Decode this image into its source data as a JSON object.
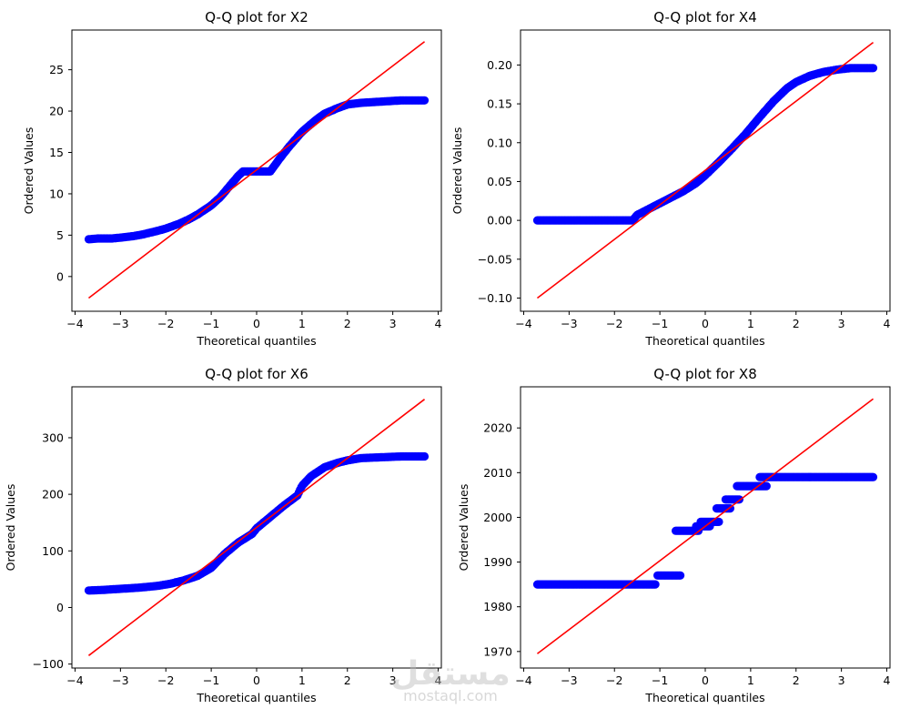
{
  "watermark": {
    "arabic": "مستقل",
    "latin": "mostaql.com"
  },
  "chart_data": [
    {
      "type": "scatter",
      "title": "Q-Q plot for X2",
      "xlabel": "Theoretical quantiles",
      "ylabel": "Ordered Values",
      "xlim": [
        -4.07,
        4.07
      ],
      "ylim": [
        -4.2,
        29.8
      ],
      "xticks": [
        -4,
        -3,
        -2,
        -1,
        0,
        1,
        2,
        3,
        4
      ],
      "yticks": [
        0,
        5,
        10,
        15,
        20,
        25
      ],
      "xtick_labels": [
        "−4",
        "−3",
        "−2",
        "−1",
        "0",
        "1",
        "2",
        "3",
        "4"
      ],
      "ytick_labels": [
        "0",
        "5",
        "10",
        "15",
        "20",
        "25"
      ],
      "points_color": "#0000ff",
      "fit_color": "#ff0000",
      "fit_line": {
        "x": [
          -3.7,
          3.7
        ],
        "y": [
          -2.6,
          28.4
        ]
      },
      "quantile_curve": {
        "x": [
          -3.7,
          -3.5,
          -3.2,
          -3.0,
          -2.7,
          -2.5,
          -2.2,
          -2.0,
          -1.7,
          -1.5,
          -1.3,
          -1.0,
          -0.8,
          -0.6,
          -0.4,
          -0.3,
          0.3,
          0.5,
          0.7,
          1.0,
          1.3,
          1.5,
          1.8,
          2.0,
          2.3,
          2.6,
          2.9,
          3.2,
          3.5,
          3.7
        ],
        "y": [
          4.5,
          4.6,
          4.6,
          4.7,
          4.9,
          5.1,
          5.5,
          5.8,
          6.4,
          6.9,
          7.5,
          8.6,
          9.6,
          10.9,
          12.2,
          12.7,
          12.7,
          14.2,
          15.6,
          17.5,
          18.9,
          19.7,
          20.4,
          20.8,
          21.0,
          21.1,
          21.2,
          21.3,
          21.3,
          21.3
        ]
      }
    },
    {
      "type": "scatter",
      "title": "Q-Q plot for X4",
      "xlabel": "Theoretical quantiles",
      "ylabel": "Ordered Values",
      "xlim": [
        -4.07,
        4.07
      ],
      "ylim": [
        -0.117,
        0.245
      ],
      "xticks": [
        -4,
        -3,
        -2,
        -1,
        0,
        1,
        2,
        3,
        4
      ],
      "yticks": [
        -0.1,
        -0.05,
        0.0,
        0.05,
        0.1,
        0.15,
        0.2
      ],
      "xtick_labels": [
        "−4",
        "−3",
        "−2",
        "−1",
        "0",
        "1",
        "2",
        "3",
        "4"
      ],
      "ytick_labels": [
        "−0.10",
        "−0.05",
        "0.00",
        "0.05",
        "0.10",
        "0.15",
        "0.20"
      ],
      "points_color": "#0000ff",
      "fit_color": "#ff0000",
      "fit_line": {
        "x": [
          -3.7,
          3.7
        ],
        "y": [
          -0.1,
          0.229
        ]
      },
      "quantile_curve": {
        "x": [
          -3.7,
          -3.4,
          -3.0,
          -2.6,
          -2.2,
          -1.9,
          -1.6,
          -1.5,
          -1.3,
          -1.0,
          -0.8,
          -0.5,
          -0.2,
          0.0,
          0.3,
          0.6,
          0.9,
          1.2,
          1.5,
          1.8,
          2.0,
          2.3,
          2.6,
          2.9,
          3.2,
          3.5,
          3.7
        ],
        "y": [
          0.0,
          0.0,
          0.0,
          0.0,
          0.0,
          0.0,
          0.0,
          0.007,
          0.013,
          0.022,
          0.028,
          0.037,
          0.048,
          0.058,
          0.075,
          0.093,
          0.112,
          0.133,
          0.153,
          0.17,
          0.178,
          0.186,
          0.191,
          0.194,
          0.196,
          0.196,
          0.196
        ]
      }
    },
    {
      "type": "scatter",
      "title": "Q-Q plot for X6",
      "xlabel": "Theoretical quantiles",
      "ylabel": "Ordered Values",
      "xlim": [
        -4.07,
        4.07
      ],
      "ylim": [
        -107,
        390
      ],
      "xticks": [
        -4,
        -3,
        -2,
        -1,
        0,
        1,
        2,
        3,
        4
      ],
      "yticks": [
        -100,
        0,
        100,
        200,
        300
      ],
      "xtick_labels": [
        "−4",
        "−3",
        "−2",
        "−1",
        "0",
        "1",
        "2",
        "3",
        "4"
      ],
      "ytick_labels": [
        "−100",
        "0",
        "100",
        "200",
        "300"
      ],
      "points_color": "#0000ff",
      "fit_color": "#ff0000",
      "fit_line": {
        "x": [
          -3.7,
          3.7
        ],
        "y": [
          -85,
          368
        ]
      },
      "quantile_curve": {
        "x": [
          -3.7,
          -3.4,
          -3.0,
          -2.6,
          -2.2,
          -1.9,
          -1.6,
          -1.3,
          -1.0,
          -0.7,
          -0.4,
          -0.1,
          0.0,
          0.3,
          0.6,
          0.9,
          1.0,
          1.2,
          1.5,
          1.8,
          2.0,
          2.3,
          2.6,
          2.9,
          3.2,
          3.5,
          3.7
        ],
        "y": [
          30,
          31,
          33,
          35,
          38,
          42,
          48,
          56,
          70,
          95,
          115,
          130,
          140,
          160,
          180,
          198,
          215,
          232,
          248,
          256,
          260,
          264,
          265,
          266,
          267,
          267,
          267
        ]
      }
    },
    {
      "type": "scatter",
      "title": "Q-Q plot for X8",
      "xlabel": "Theoretical quantiles",
      "ylabel": "Ordered Values",
      "xlim": [
        -4.07,
        4.07
      ],
      "ylim": [
        1966.3,
        2029.2
      ],
      "xticks": [
        -4,
        -3,
        -2,
        -1,
        0,
        1,
        2,
        3,
        4
      ],
      "yticks": [
        1970,
        1980,
        1990,
        2000,
        2010,
        2020
      ],
      "xtick_labels": [
        "−4",
        "−3",
        "−2",
        "−1",
        "0",
        "1",
        "2",
        "3",
        "4"
      ],
      "ytick_labels": [
        "1970",
        "1980",
        "1990",
        "2000",
        "2010",
        "2020"
      ],
      "points_color": "#0000ff",
      "fit_color": "#ff0000",
      "fit_line": {
        "x": [
          -3.7,
          3.7
        ],
        "y": [
          1969.5,
          2026.5
        ]
      },
      "step_segments": [
        {
          "x0": -3.7,
          "x1": -1.1,
          "y": 1985
        },
        {
          "x0": -1.05,
          "x1": -0.55,
          "y": 1987
        },
        {
          "x0": -0.65,
          "x1": -0.15,
          "y": 1997
        },
        {
          "x0": -0.2,
          "x1": 0.1,
          "y": 1998
        },
        {
          "x0": -0.1,
          "x1": 0.3,
          "y": 1999
        },
        {
          "x0": 0.25,
          "x1": 0.55,
          "y": 2002
        },
        {
          "x0": 0.45,
          "x1": 0.75,
          "y": 2004
        },
        {
          "x0": 0.7,
          "x1": 1.35,
          "y": 2007
        },
        {
          "x0": 1.2,
          "x1": 3.7,
          "y": 2009
        }
      ]
    }
  ]
}
